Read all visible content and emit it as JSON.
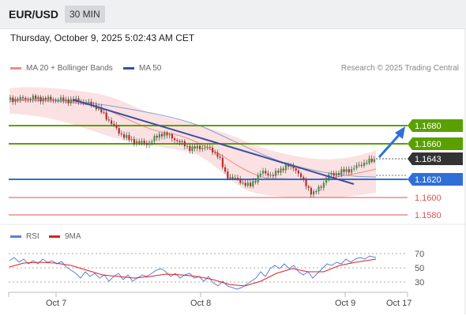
{
  "header": {
    "symbol": "EUR/USD",
    "timeframe": "30 MIN",
    "datetime": "Thursday, October 9, 2025 5:02:43 AM CET"
  },
  "legend": {
    "ma20_label": "MA 20 + Bollinger Bands",
    "ma50_label": "MA 50",
    "research": "Research © 2025 Trading Central",
    "rsi_label": "RSI",
    "ma9_label": "9MA"
  },
  "colors": {
    "bull": "#2e9e4a",
    "bear": "#c62828",
    "band_fill": "#f9d6d6",
    "ma20": "#f08a8a",
    "ma50": "#3a4fa0",
    "green_level": "#5aa000",
    "blue_level": "#2f6fd6",
    "red_level": "#e05050",
    "last_price": "#333333",
    "rsi": "#5b7fd8",
    "rsi_ma": "#e02020"
  },
  "price_levels": [
    {
      "price": "1.1680",
      "type": "resistance"
    },
    {
      "price": "1.1660",
      "type": "resistance"
    },
    {
      "price": "1.1643",
      "type": "last"
    },
    {
      "price": "1.1620",
      "type": "pivot"
    },
    {
      "price": "1.1600",
      "type": "support"
    },
    {
      "price": "1.1580",
      "type": "support"
    }
  ],
  "x_axis": [
    "Oct 7",
    "Oct 8",
    "Oct 9",
    "Oct 17"
  ],
  "rsi_axis": [
    "70",
    "50",
    "30"
  ]
}
